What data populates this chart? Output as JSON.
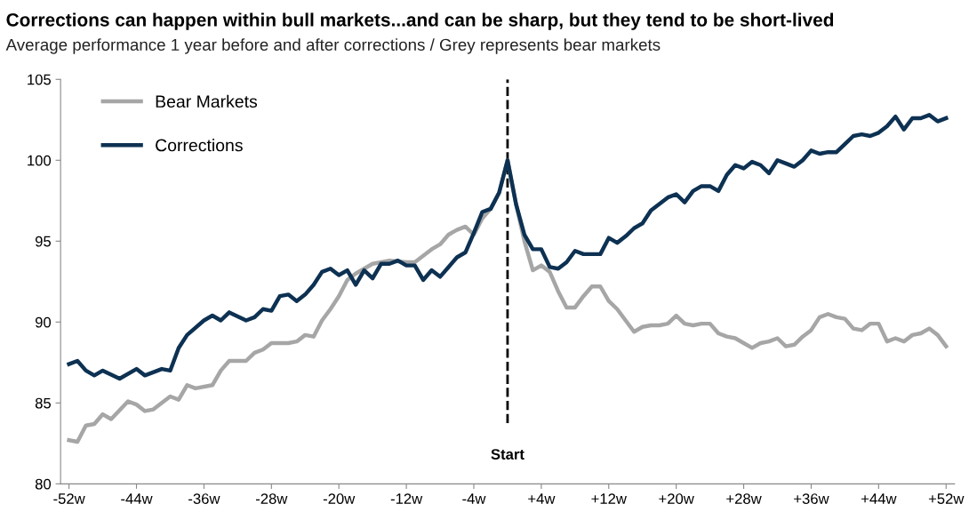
{
  "chart_data": {
    "type": "line",
    "title": "Corrections can happen within bull markets...and can be sharp, but they tend to be short-lived",
    "subtitle": "Average performance 1 year before and after corrections / Grey represents bear markets",
    "series": [
      {
        "name": "Bear Markets",
        "color": "#a6a6a6",
        "x": [
          -52,
          -51,
          -50,
          -49,
          -48,
          -47,
          -45,
          -44,
          -43,
          -42,
          -40,
          -39,
          -38,
          -37,
          -35,
          -34,
          -33,
          -31,
          -30,
          -29,
          -28,
          -27,
          -26,
          -25,
          -24,
          -23,
          -22,
          -21,
          -20,
          -19,
          -18,
          -17,
          -16,
          -15,
          -14,
          -12,
          -11,
          -10,
          -9,
          -8,
          -7,
          -6,
          -5,
          -4,
          -3,
          -2,
          -1,
          0,
          1,
          2,
          3,
          4,
          5,
          6,
          7,
          8,
          9,
          10,
          11,
          12,
          13,
          14,
          15,
          16,
          17,
          18,
          19,
          20,
          21,
          22,
          23,
          24,
          25,
          26,
          27,
          28,
          29,
          30,
          31,
          32,
          33,
          34,
          35,
          36,
          37,
          38,
          39,
          40,
          41,
          42,
          43,
          44,
          45,
          46,
          47,
          48,
          49,
          50,
          51,
          52
        ],
        "values": [
          82.7,
          82.6,
          83.6,
          83.7,
          84.3,
          84.0,
          85.1,
          84.9,
          84.5,
          84.6,
          85.4,
          85.2,
          86.1,
          85.9,
          86.1,
          87.0,
          87.6,
          87.6,
          88.1,
          88.3,
          88.7,
          88.7,
          88.7,
          88.8,
          89.2,
          89.1,
          90.1,
          90.8,
          91.6,
          92.6,
          93.0,
          93.3,
          93.6,
          93.7,
          93.8,
          93.7,
          93.7,
          94.1,
          94.5,
          94.8,
          95.4,
          95.7,
          95.9,
          95.4,
          96.4,
          97.0,
          98.0,
          100.0,
          97.3,
          95.0,
          93.2,
          93.5,
          93.1,
          91.9,
          90.9,
          90.9,
          91.6,
          92.2,
          92.2,
          91.3,
          90.8,
          90.1,
          89.4,
          89.7,
          89.8,
          89.8,
          89.9,
          90.4,
          89.9,
          89.8,
          89.9,
          89.9,
          89.3,
          89.1,
          89.0,
          88.7,
          88.4,
          88.7,
          88.8,
          89.0,
          88.5,
          88.6,
          89.1,
          89.5,
          90.3,
          90.5,
          90.3,
          90.2,
          89.6,
          89.5,
          89.9,
          89.9,
          88.8,
          89.0,
          88.8,
          89.2,
          89.3,
          89.6,
          89.2,
          88.5
        ]
      },
      {
        "name": "Corrections",
        "color": "#0d3152",
        "x": [
          -52,
          -51,
          -50,
          -49,
          -48,
          -46,
          -44,
          -43,
          -41,
          -40,
          -39,
          -38,
          -36,
          -35,
          -34,
          -33,
          -31,
          -30,
          -29,
          -28,
          -27,
          -26,
          -25,
          -24,
          -23,
          -22,
          -21,
          -20,
          -19,
          -18,
          -17,
          -16,
          -15,
          -14,
          -13,
          -12,
          -11,
          -10,
          -9,
          -8,
          -7,
          -6,
          -5,
          -4,
          -3,
          -2,
          -1,
          0,
          1,
          2,
          3,
          4,
          5,
          6,
          7,
          8,
          9,
          10,
          11,
          12,
          13,
          14,
          15,
          16,
          17,
          18,
          19,
          20,
          21,
          22,
          23,
          24,
          25,
          26,
          27,
          28,
          29,
          30,
          31,
          32,
          33,
          34,
          35,
          36,
          37,
          38,
          39,
          40,
          41,
          42,
          43,
          44,
          45,
          46,
          47,
          48,
          49,
          50,
          51,
          52
        ],
        "values": [
          87.4,
          87.6,
          87.0,
          86.7,
          87.0,
          86.5,
          87.1,
          86.7,
          87.1,
          87.0,
          88.4,
          89.2,
          90.1,
          90.4,
          90.1,
          90.6,
          90.1,
          90.3,
          90.8,
          90.7,
          91.6,
          91.7,
          91.3,
          91.7,
          92.3,
          93.1,
          93.3,
          92.9,
          93.2,
          92.3,
          93.2,
          92.7,
          93.6,
          93.6,
          93.8,
          93.5,
          93.5,
          92.6,
          93.2,
          92.8,
          93.4,
          94.0,
          94.3,
          95.5,
          96.8,
          97.0,
          98.0,
          100.0,
          97.3,
          95.4,
          94.5,
          94.5,
          93.4,
          93.3,
          93.7,
          94.4,
          94.2,
          94.2,
          94.2,
          95.2,
          94.9,
          95.3,
          95.8,
          96.1,
          96.9,
          97.3,
          97.7,
          97.9,
          97.4,
          98.1,
          98.4,
          98.4,
          98.1,
          99.1,
          99.7,
          99.5,
          99.9,
          99.7,
          99.2,
          100.0,
          99.8,
          99.6,
          100.0,
          100.6,
          100.4,
          100.5,
          100.5,
          101.0,
          101.5,
          101.6,
          101.5,
          101.7,
          102.1,
          102.7,
          101.9,
          102.6,
          102.6,
          102.8,
          102.4,
          102.6
        ]
      }
    ],
    "xlim": [
      -53,
      53
    ],
    "xticks": [
      {
        "value": -52,
        "label": "-52w"
      },
      {
        "value": -44,
        "label": "-44w"
      },
      {
        "value": -36,
        "label": "-36w"
      },
      {
        "value": -28,
        "label": "-28w"
      },
      {
        "value": -20,
        "label": "-20w"
      },
      {
        "value": -12,
        "label": "-12w"
      },
      {
        "value": -4,
        "label": "-4w"
      },
      {
        "value": 4,
        "label": "+4w"
      },
      {
        "value": 12,
        "label": "+12w"
      },
      {
        "value": 20,
        "label": "+20w"
      },
      {
        "value": 28,
        "label": "+28w"
      },
      {
        "value": 36,
        "label": "+36w"
      },
      {
        "value": 44,
        "label": "+44w"
      },
      {
        "value": 52,
        "label": "+52w"
      }
    ],
    "ylim": [
      80,
      105
    ],
    "yticks": [
      80,
      85,
      90,
      95,
      100,
      105
    ],
    "ref_lines": [
      {
        "axis": "x",
        "value": 0,
        "label": "Start",
        "color": "#000000",
        "line_style": "dashed"
      }
    ],
    "grid": false,
    "legend": "top left",
    "marker": "none",
    "line_style": "solid"
  }
}
